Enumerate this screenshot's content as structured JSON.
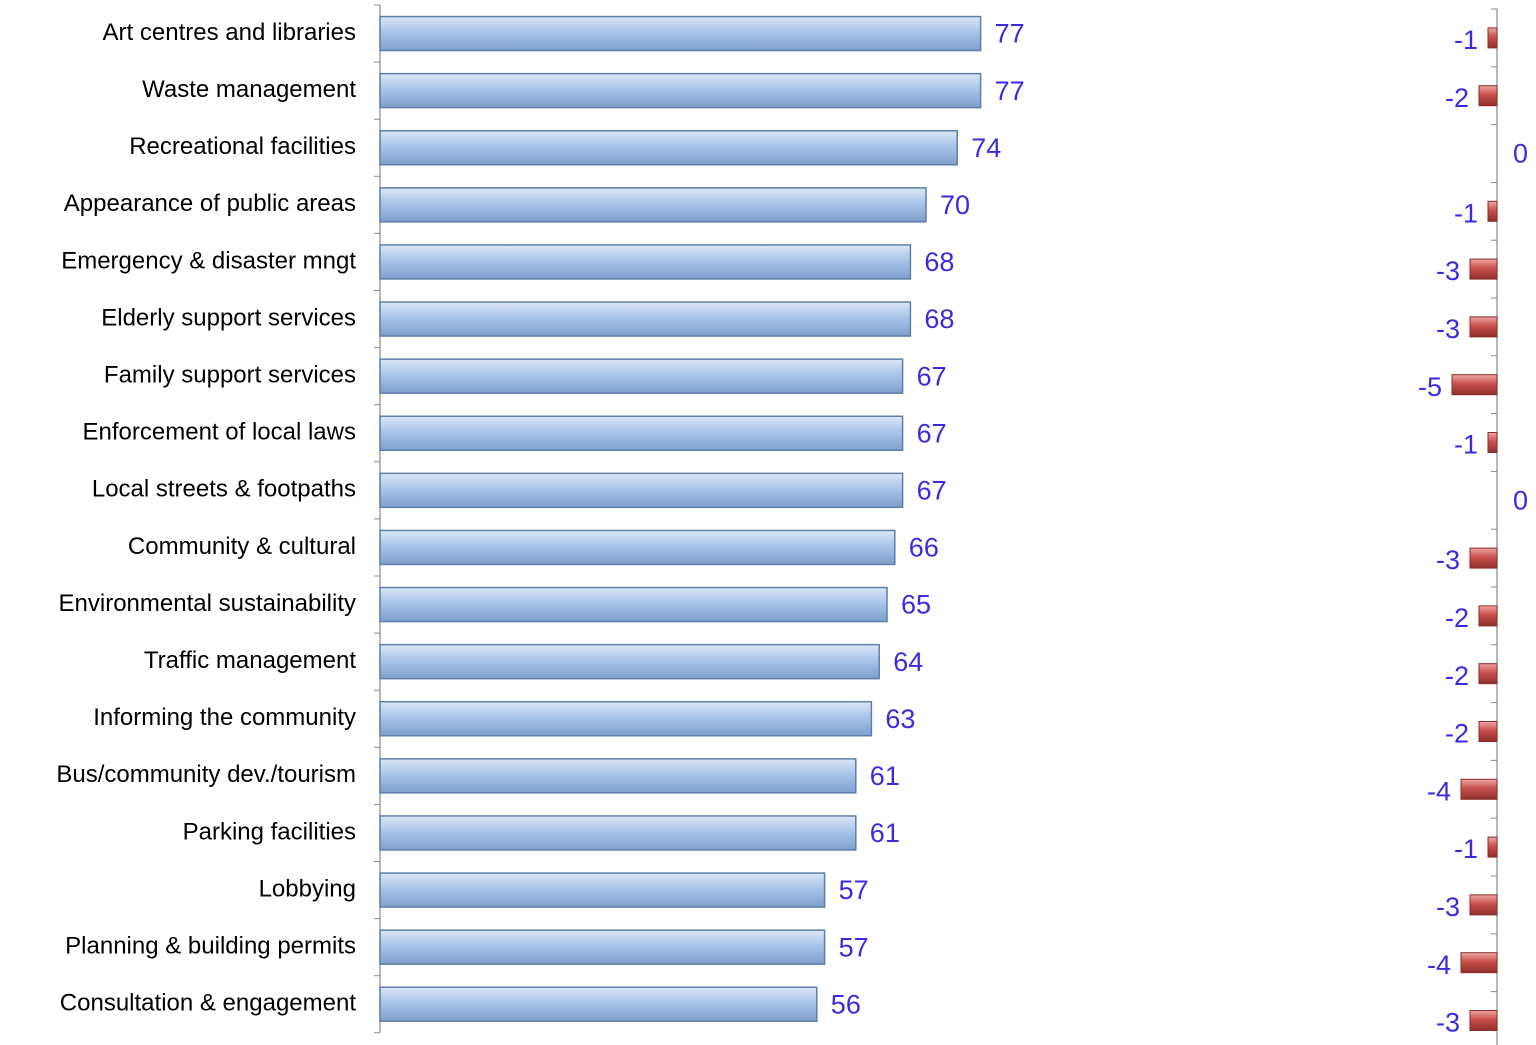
{
  "chart_data": [
    {
      "type": "bar",
      "orientation": "horizontal",
      "categories": [
        "Art centres and libraries",
        "Waste management",
        "Recreational facilities",
        "Appearance of public areas",
        "Emergency & disaster mngt",
        "Elderly support services",
        "Family support services",
        "Enforcement of local laws",
        "Local streets & footpaths",
        "Community & cultural",
        "Environmental sustainability",
        "Traffic management",
        "Informing the community",
        "Bus/community dev./tourism",
        "Parking facilities",
        "Lobbying",
        "Planning & building permits",
        "Consultation & engagement"
      ],
      "values": [
        77,
        77,
        74,
        70,
        68,
        68,
        67,
        67,
        67,
        66,
        65,
        64,
        63,
        61,
        61,
        57,
        57,
        56
      ],
      "color": "#a9c5e9",
      "xlim": [
        0,
        100
      ]
    },
    {
      "type": "bar",
      "orientation": "horizontal",
      "values": [
        -1,
        -2,
        0,
        -1,
        -3,
        -3,
        -5,
        -1,
        0,
        -3,
        -2,
        -2,
        -2,
        -4,
        -1,
        -3,
        -4,
        -3
      ],
      "color": "#c9504c",
      "xlim": [
        -5,
        0
      ]
    }
  ]
}
